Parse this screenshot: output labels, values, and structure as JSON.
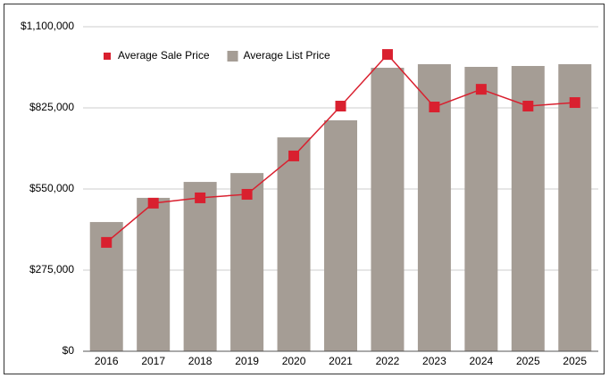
{
  "chart_data": {
    "type": "combo",
    "categories": [
      "2016",
      "2017",
      "2018",
      "2019",
      "2020",
      "2021",
      "2022",
      "2023",
      "2024",
      "2025",
      "2025"
    ],
    "series": [
      {
        "name": "Average Sale Price",
        "type": "line",
        "color": "#d9202f",
        "values": [
          369000,
          502000,
          520000,
          532000,
          662000,
          831000,
          1006000,
          828000,
          888000,
          831000,
          843000
        ]
      },
      {
        "name": "Average List Price",
        "type": "bar",
        "color": "#a59d95",
        "values": [
          438000,
          520000,
          574000,
          604000,
          725000,
          783000,
          961000,
          973000,
          964000,
          967000,
          973000
        ]
      }
    ],
    "ylim": [
      0,
      1100000
    ],
    "yticks": [
      {
        "value": 0,
        "label": "$0"
      },
      {
        "value": 275000,
        "label": "$275,000"
      },
      {
        "value": 550000,
        "label": "$550,000"
      },
      {
        "value": 825000,
        "label": "$825,000"
      },
      {
        "value": 1100000,
        "label": "$1,100,000"
      }
    ],
    "grid": true,
    "legend": "top-left"
  }
}
